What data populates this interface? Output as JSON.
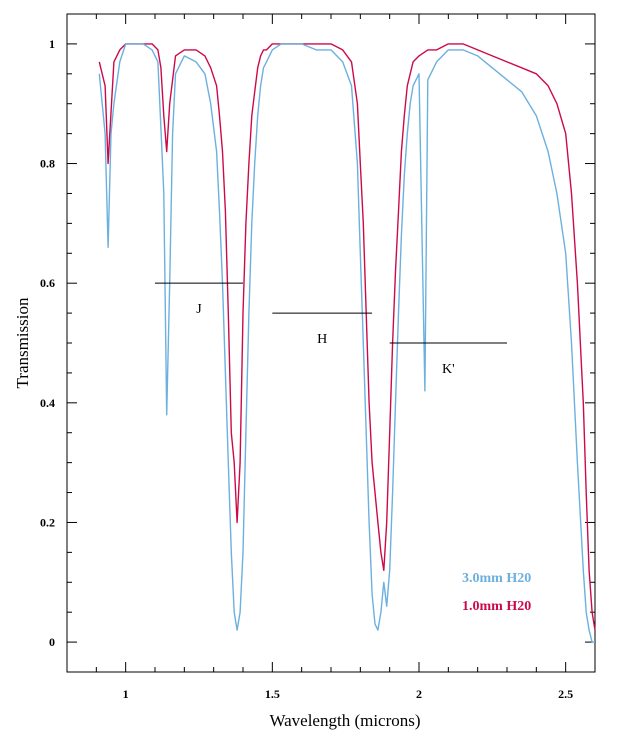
{
  "chart_data": {
    "type": "line",
    "xlabel": "Wavelength (microns)",
    "ylabel": "Transmission",
    "xlim": [
      0.8,
      2.6
    ],
    "ylim": [
      -0.05,
      1.05
    ],
    "x_ticks": [
      1,
      1.5,
      2,
      2.5
    ],
    "x_tick_labels": [
      "1",
      "1.5",
      "2",
      "2.5"
    ],
    "y_ticks": [
      0,
      0.2,
      0.4,
      0.6,
      0.8,
      1
    ],
    "y_tick_labels": [
      "0",
      "0.2",
      "0.4",
      "0.6",
      "0.8",
      "1"
    ],
    "grid": false,
    "legend_position": "bottom-right",
    "series": [
      {
        "name": "1.0mm H20",
        "color": "#cc0a4a",
        "x": [
          0.91,
          0.93,
          0.94,
          0.96,
          0.98,
          1.0,
          1.03,
          1.06,
          1.09,
          1.11,
          1.12,
          1.13,
          1.14,
          1.15,
          1.17,
          1.2,
          1.24,
          1.27,
          1.29,
          1.31,
          1.32,
          1.33,
          1.34,
          1.35,
          1.36,
          1.37,
          1.38,
          1.39,
          1.4,
          1.41,
          1.42,
          1.43,
          1.44,
          1.45,
          1.46,
          1.47,
          1.48,
          1.5,
          1.53,
          1.56,
          1.6,
          1.65,
          1.7,
          1.74,
          1.77,
          1.79,
          1.8,
          1.81,
          1.82,
          1.83,
          1.84,
          1.85,
          1.86,
          1.87,
          1.88,
          1.89,
          1.9,
          1.91,
          1.92,
          1.93,
          1.94,
          1.95,
          1.96,
          1.97,
          1.98,
          2.0,
          2.03,
          2.06,
          2.1,
          2.15,
          2.2,
          2.25,
          2.3,
          2.35,
          2.4,
          2.44,
          2.47,
          2.5,
          2.52,
          2.54,
          2.56,
          2.57,
          2.58,
          2.59,
          2.6
        ],
        "y": [
          0.97,
          0.93,
          0.8,
          0.97,
          0.99,
          1.0,
          1.0,
          1.0,
          1.0,
          0.99,
          0.96,
          0.88,
          0.82,
          0.9,
          0.98,
          0.99,
          0.99,
          0.98,
          0.96,
          0.93,
          0.88,
          0.82,
          0.72,
          0.55,
          0.35,
          0.3,
          0.2,
          0.3,
          0.55,
          0.7,
          0.8,
          0.88,
          0.92,
          0.96,
          0.98,
          0.99,
          0.99,
          1.0,
          1.0,
          1.0,
          1.0,
          1.0,
          1.0,
          0.99,
          0.97,
          0.9,
          0.8,
          0.7,
          0.55,
          0.4,
          0.3,
          0.25,
          0.2,
          0.15,
          0.12,
          0.2,
          0.35,
          0.5,
          0.62,
          0.72,
          0.82,
          0.88,
          0.93,
          0.95,
          0.97,
          0.98,
          0.99,
          0.99,
          1.0,
          1.0,
          0.99,
          0.98,
          0.97,
          0.96,
          0.95,
          0.93,
          0.9,
          0.85,
          0.75,
          0.6,
          0.4,
          0.25,
          0.12,
          0.05,
          0.02
        ]
      },
      {
        "name": "3.0mm H20",
        "color": "#6cb0df",
        "x": [
          0.91,
          0.93,
          0.94,
          0.95,
          0.96,
          0.98,
          1.0,
          1.03,
          1.06,
          1.09,
          1.11,
          1.12,
          1.13,
          1.14,
          1.15,
          1.16,
          1.17,
          1.2,
          1.24,
          1.27,
          1.29,
          1.31,
          1.32,
          1.33,
          1.34,
          1.35,
          1.36,
          1.37,
          1.38,
          1.39,
          1.4,
          1.41,
          1.42,
          1.43,
          1.44,
          1.45,
          1.46,
          1.47,
          1.48,
          1.5,
          1.53,
          1.56,
          1.6,
          1.65,
          1.7,
          1.74,
          1.77,
          1.79,
          1.8,
          1.81,
          1.82,
          1.83,
          1.84,
          1.85,
          1.86,
          1.87,
          1.88,
          1.89,
          1.9,
          1.91,
          1.92,
          1.93,
          1.94,
          1.95,
          1.96,
          1.97,
          1.98,
          2.0,
          2.02,
          2.03,
          2.06,
          2.1,
          2.15,
          2.2,
          2.25,
          2.3,
          2.35,
          2.4,
          2.44,
          2.47,
          2.5,
          2.52,
          2.54,
          2.56,
          2.57,
          2.58,
          2.59,
          2.6
        ],
        "y": [
          0.95,
          0.85,
          0.66,
          0.85,
          0.9,
          0.97,
          1.0,
          1.0,
          1.0,
          0.99,
          0.97,
          0.86,
          0.75,
          0.38,
          0.6,
          0.85,
          0.95,
          0.98,
          0.97,
          0.95,
          0.9,
          0.82,
          0.72,
          0.6,
          0.45,
          0.3,
          0.15,
          0.05,
          0.02,
          0.05,
          0.15,
          0.35,
          0.55,
          0.7,
          0.8,
          0.88,
          0.93,
          0.96,
          0.97,
          0.99,
          1.0,
          1.0,
          1.0,
          0.99,
          0.99,
          0.97,
          0.93,
          0.8,
          0.65,
          0.5,
          0.35,
          0.2,
          0.08,
          0.03,
          0.02,
          0.05,
          0.1,
          0.06,
          0.12,
          0.25,
          0.4,
          0.55,
          0.68,
          0.78,
          0.85,
          0.9,
          0.93,
          0.95,
          0.42,
          0.94,
          0.97,
          0.99,
          0.99,
          0.98,
          0.96,
          0.94,
          0.92,
          0.88,
          0.82,
          0.75,
          0.65,
          0.5,
          0.3,
          0.12,
          0.05,
          0.02,
          0.0,
          0.0
        ]
      }
    ],
    "bands": [
      {
        "label": "J",
        "x_start": 1.1,
        "x_end": 1.4,
        "y": 0.6
      },
      {
        "label": "H",
        "x_start": 1.5,
        "x_end": 1.84,
        "y": 0.55
      },
      {
        "label": "K'",
        "x_start": 1.9,
        "x_end": 2.3,
        "y": 0.5
      }
    ]
  }
}
